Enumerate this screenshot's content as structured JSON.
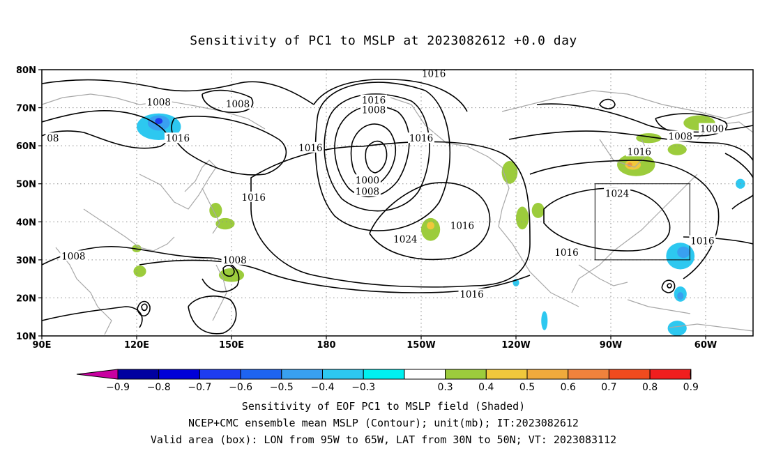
{
  "title": "Sensitivity of PC1 to MSLP at 2023082612 +0.0 day",
  "captions": [
    "Sensitivity of EOF PC1 to MSLP field (Shaded)",
    "NCEP+CMC ensemble mean MSLP (Contour); unit(mb); IT:2023082612",
    "Valid area (box): LON from 95W to 65W, LAT from 30N to 50N; VT: 2023083112"
  ],
  "map": {
    "lat_labels": [
      "80N",
      "70N",
      "60N",
      "50N",
      "40N",
      "30N",
      "20N",
      "10N"
    ],
    "lon_labels": [
      "90E",
      "120E",
      "150E",
      "180",
      "150W",
      "120W",
      "90W",
      "60W"
    ],
    "lon_tick_values": [
      90,
      120,
      150,
      180,
      210,
      240,
      270,
      300
    ],
    "lat_tick_values": [
      80,
      70,
      60,
      50,
      40,
      30,
      20,
      10
    ],
    "lon_range": [
      90,
      315
    ],
    "lat_range": [
      10,
      80
    ],
    "valid_box": {
      "lon_from": "95W",
      "lon_to": "65W",
      "lat_from": "30N",
      "lat_to": "50N",
      "lon": [
        265,
        295
      ],
      "lat": [
        30,
        50
      ]
    },
    "contour_labels": [
      {
        "text": "1016",
        "lon": 214,
        "lat": 79
      },
      {
        "text": "1008",
        "lon": 127,
        "lat": 71.5
      },
      {
        "text": "1008",
        "lon": 152,
        "lat": 71
      },
      {
        "text": "1016",
        "lon": 195,
        "lat": 72
      },
      {
        "text": "1008",
        "lon": 195,
        "lat": 69.5
      },
      {
        "text": "08",
        "lon": 93.5,
        "lat": 62
      },
      {
        "text": "1016",
        "lon": 133,
        "lat": 62
      },
      {
        "text": "1016",
        "lon": 210,
        "lat": 62
      },
      {
        "text": "1016",
        "lon": 175,
        "lat": 59.5
      },
      {
        "text": "1000",
        "lon": 193,
        "lat": 51
      },
      {
        "text": "1008",
        "lon": 193,
        "lat": 48
      },
      {
        "text": "1016",
        "lon": 157,
        "lat": 46.5
      },
      {
        "text": "1024",
        "lon": 272,
        "lat": 47.5
      },
      {
        "text": "1016",
        "lon": 223,
        "lat": 39
      },
      {
        "text": "1024",
        "lon": 205,
        "lat": 35.5
      },
      {
        "text": "1016",
        "lon": 299,
        "lat": 35
      },
      {
        "text": "1008",
        "lon": 100,
        "lat": 31
      },
      {
        "text": "1008",
        "lon": 151,
        "lat": 30
      },
      {
        "text": "1016",
        "lon": 256,
        "lat": 32
      },
      {
        "text": "1016",
        "lon": 226,
        "lat": 21
      },
      {
        "text": "1016",
        "lon": 279,
        "lat": 58.5
      },
      {
        "text": "1008",
        "lon": 292,
        "lat": 62.5
      },
      {
        "text": "1000",
        "lon": 302,
        "lat": 64.5
      }
    ],
    "shaded_features": [
      {
        "color": "#2dc8f0",
        "lon": 127,
        "lat": 65,
        "rx": 7,
        "ry": 3.5
      },
      {
        "color": "#39a0f0",
        "lon": 127,
        "lat": 66,
        "rx": 3.5,
        "ry": 2
      },
      {
        "color": "#1e3cf0",
        "lon": 127,
        "lat": 66.5,
        "rx": 1.2,
        "ry": 0.8
      },
      {
        "color": "#9ccc3c",
        "lon": 148,
        "lat": 39.5,
        "rx": 3,
        "ry": 1.5
      },
      {
        "color": "#9ccc3c",
        "lon": 145,
        "lat": 43,
        "rx": 2,
        "ry": 2
      },
      {
        "color": "#9ccc3c",
        "lon": 150,
        "lat": 26,
        "rx": 4,
        "ry": 1.8
      },
      {
        "color": "#9ccc3c",
        "lon": 121,
        "lat": 27,
        "rx": 2,
        "ry": 1.5
      },
      {
        "color": "#9ccc3c",
        "lon": 120,
        "lat": 33,
        "rx": 1.5,
        "ry": 1
      },
      {
        "color": "#9ccc3c",
        "lon": 213,
        "lat": 38,
        "rx": 3,
        "ry": 3
      },
      {
        "color": "#f0c83c",
        "lon": 213,
        "lat": 39,
        "rx": 1.2,
        "ry": 1
      },
      {
        "color": "#9ccc3c",
        "lon": 238,
        "lat": 53,
        "rx": 2.5,
        "ry": 3
      },
      {
        "color": "#9ccc3c",
        "lon": 242,
        "lat": 41,
        "rx": 2,
        "ry": 3
      },
      {
        "color": "#9ccc3c",
        "lon": 247,
        "lat": 43,
        "rx": 2,
        "ry": 2
      },
      {
        "color": "#9ccc3c",
        "lon": 278,
        "lat": 55,
        "rx": 6,
        "ry": 3
      },
      {
        "color": "#f0c83c",
        "lon": 277,
        "lat": 55,
        "rx": 2.5,
        "ry": 1.3
      },
      {
        "color": "#f0963c",
        "lon": 276,
        "lat": 55,
        "rx": 0.8,
        "ry": 0.6
      },
      {
        "color": "#9ccc3c",
        "lon": 282,
        "lat": 62,
        "rx": 4,
        "ry": 1.3
      },
      {
        "color": "#9ccc3c",
        "lon": 298,
        "lat": 66,
        "rx": 5,
        "ry": 2
      },
      {
        "color": "#9ccc3c",
        "lon": 291,
        "lat": 59,
        "rx": 3,
        "ry": 1.5
      },
      {
        "color": "#2dc8f0",
        "lon": 292,
        "lat": 31,
        "rx": 4.5,
        "ry": 3.5
      },
      {
        "color": "#39a0f0",
        "lon": 293,
        "lat": 32,
        "rx": 2,
        "ry": 1.5
      },
      {
        "color": "#2dc8f0",
        "lon": 292,
        "lat": 21,
        "rx": 2,
        "ry": 2
      },
      {
        "color": "#39a0f0",
        "lon": 292,
        "lat": 20.5,
        "rx": 1,
        "ry": 1
      },
      {
        "color": "#2dc8f0",
        "lon": 291,
        "lat": 12,
        "rx": 3,
        "ry": 2
      },
      {
        "color": "#2dc8f0",
        "lon": 249,
        "lat": 14,
        "rx": 1,
        "ry": 2.5
      },
      {
        "color": "#2dc8f0",
        "lon": 311,
        "lat": 50,
        "rx": 1.5,
        "ry": 1.3
      },
      {
        "color": "#2dc8f0",
        "lon": 240,
        "lat": 24,
        "rx": 1,
        "ry": 1
      }
    ]
  },
  "colorbar": {
    "labels": [
      "-0.9",
      "-0.8",
      "-0.7",
      "-0.6",
      "-0.5",
      "-0.4",
      "-0.3",
      "0.3",
      "0.4",
      "0.5",
      "0.6",
      "0.7",
      "0.8",
      "0.9"
    ],
    "colors": [
      "#0000a0",
      "#0000d8",
      "#1e3cf0",
      "#1e64f0",
      "#39a0f0",
      "#2dc8f0",
      "#00f0f0",
      "#ffffff",
      "#9ccc3c",
      "#f0c83c",
      "#f0aa3c",
      "#f0823c",
      "#f04b1e",
      "#f01e1e"
    ],
    "low_end_color": "#c800a0",
    "high_end_color": "#f09ed2"
  }
}
